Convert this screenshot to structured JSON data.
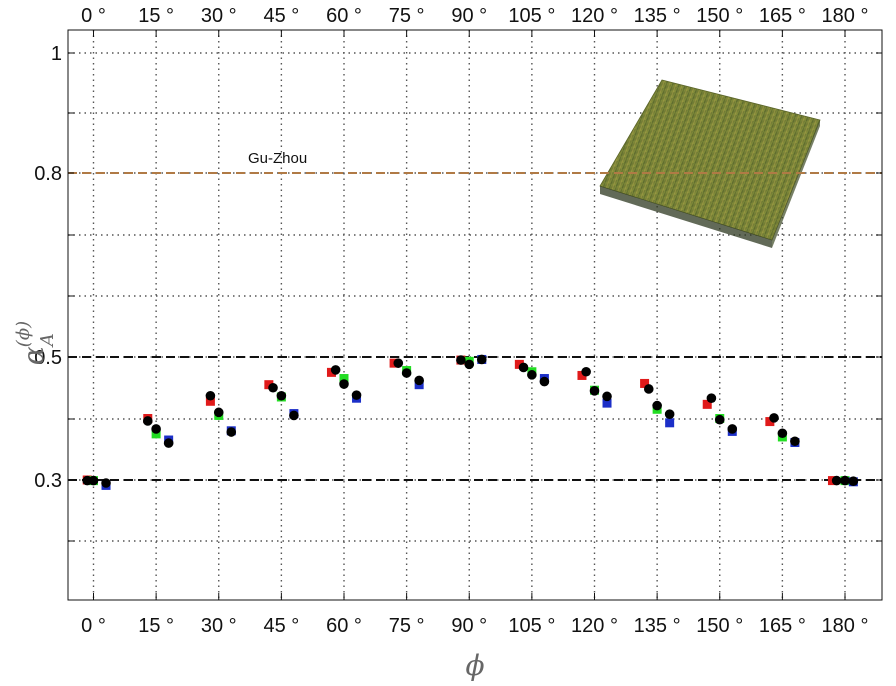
{
  "chart_data": {
    "type": "scatter",
    "title": "",
    "xlabel": "ϕ",
    "ylabel": {
      "base": "α",
      "superscript": "(ϕ)",
      "subscript": "A"
    },
    "x_unit": "°",
    "xlim": [
      -3,
      183
    ],
    "ylim": [
      0.1,
      1.05
    ],
    "y_scale": "nonlinear",
    "grid": true,
    "grid_style": "dotted",
    "x_ticks": [
      0,
      15,
      30,
      45,
      60,
      75,
      90,
      105,
      120,
      135,
      150,
      165,
      180
    ],
    "x_tick_labels": [
      "0 °",
      "15 °",
      "30 °",
      "45 °",
      "60 °",
      "75 °",
      "90 °",
      "105 °",
      "120 °",
      "135 °",
      "150 °",
      "165 °",
      "180 °"
    ],
    "y_tick_labels": [
      {
        "value": 1.0,
        "label": "1"
      },
      {
        "value": 0.8,
        "label": "0.8"
      },
      {
        "value": 0.5,
        "label": "0.5"
      },
      {
        "value": 0.3,
        "label": "0.3"
      }
    ],
    "reference_lines": [
      {
        "y": 0.8,
        "style": "dashed",
        "color": "#b07a45",
        "label": "Gu-Zhou"
      },
      {
        "y": 0.5,
        "style": "dashed",
        "color": "#111111",
        "label": ""
      },
      {
        "y": 0.3,
        "style": "dashed",
        "color": "#111111",
        "label": ""
      }
    ],
    "inset": {
      "description": "3D surface texture patch",
      "colors": [
        "#6f7a34",
        "#8f983d",
        "#4a5a2a",
        "#c9b252"
      ]
    },
    "series": [
      {
        "color": "#e01a1a",
        "marker": "square",
        "points": [
          [
            -1.5,
            0.3
          ],
          [
            13,
            0.4
          ],
          [
            28,
            0.428
          ],
          [
            42,
            0.455
          ],
          [
            57,
            0.475
          ],
          [
            72,
            0.49
          ],
          [
            88,
            0.495
          ],
          [
            102,
            0.488
          ],
          [
            117,
            0.47
          ],
          [
            132,
            0.457
          ],
          [
            147,
            0.423
          ],
          [
            162,
            0.395
          ],
          [
            177,
            0.299
          ]
        ]
      },
      {
        "color": "#22dd22",
        "marker": "square",
        "points": [
          [
            0,
            0.299
          ],
          [
            15,
            0.375
          ],
          [
            30,
            0.405
          ],
          [
            45,
            0.435
          ],
          [
            60,
            0.465
          ],
          [
            75,
            0.478
          ],
          [
            90,
            0.493
          ],
          [
            105,
            0.476
          ],
          [
            120,
            0.446
          ],
          [
            135,
            0.415
          ],
          [
            150,
            0.4
          ],
          [
            165,
            0.37
          ],
          [
            180,
            0.299
          ]
        ]
      },
      {
        "color": "#1c2fc8",
        "marker": "square",
        "points": [
          [
            3,
            0.291
          ],
          [
            18,
            0.365
          ],
          [
            33,
            0.38
          ],
          [
            48,
            0.408
          ],
          [
            63,
            0.433
          ],
          [
            78,
            0.455
          ],
          [
            93,
            0.496
          ],
          [
            108,
            0.465
          ],
          [
            123,
            0.425
          ],
          [
            138,
            0.393
          ],
          [
            153,
            0.379
          ],
          [
            168,
            0.361
          ],
          [
            182,
            0.297
          ]
        ]
      },
      {
        "color": "#000000",
        "marker": "circle",
        "points": [
          [
            0,
            0.299
          ],
          [
            15,
            0.383
          ],
          [
            30,
            0.41
          ],
          [
            45,
            0.437
          ],
          [
            60,
            0.456
          ],
          [
            75,
            0.474
          ],
          [
            90,
            0.488
          ],
          [
            105,
            0.471
          ],
          [
            120,
            0.445
          ],
          [
            135,
            0.421
          ],
          [
            150,
            0.398
          ],
          [
            165,
            0.376
          ],
          [
            180,
            0.299
          ]
        ]
      },
      {
        "color": "#000000",
        "marker": "circle",
        "points": [
          [
            -1.5,
            0.299
          ],
          [
            13,
            0.396
          ],
          [
            28,
            0.437
          ],
          [
            43,
            0.45
          ],
          [
            58,
            0.479
          ],
          [
            73,
            0.49
          ],
          [
            88,
            0.495
          ],
          [
            103,
            0.483
          ],
          [
            118,
            0.476
          ],
          [
            133,
            0.448
          ],
          [
            148,
            0.433
          ],
          [
            163,
            0.401
          ],
          [
            178,
            0.299
          ],
          [
            3,
            0.295
          ],
          [
            18,
            0.36
          ],
          [
            33,
            0.378
          ],
          [
            48,
            0.405
          ],
          [
            63,
            0.438
          ],
          [
            78,
            0.462
          ],
          [
            93,
            0.496
          ],
          [
            108,
            0.46
          ],
          [
            123,
            0.436
          ],
          [
            138,
            0.407
          ],
          [
            153,
            0.383
          ],
          [
            168,
            0.363
          ],
          [
            182,
            0.298
          ]
        ]
      }
    ]
  }
}
